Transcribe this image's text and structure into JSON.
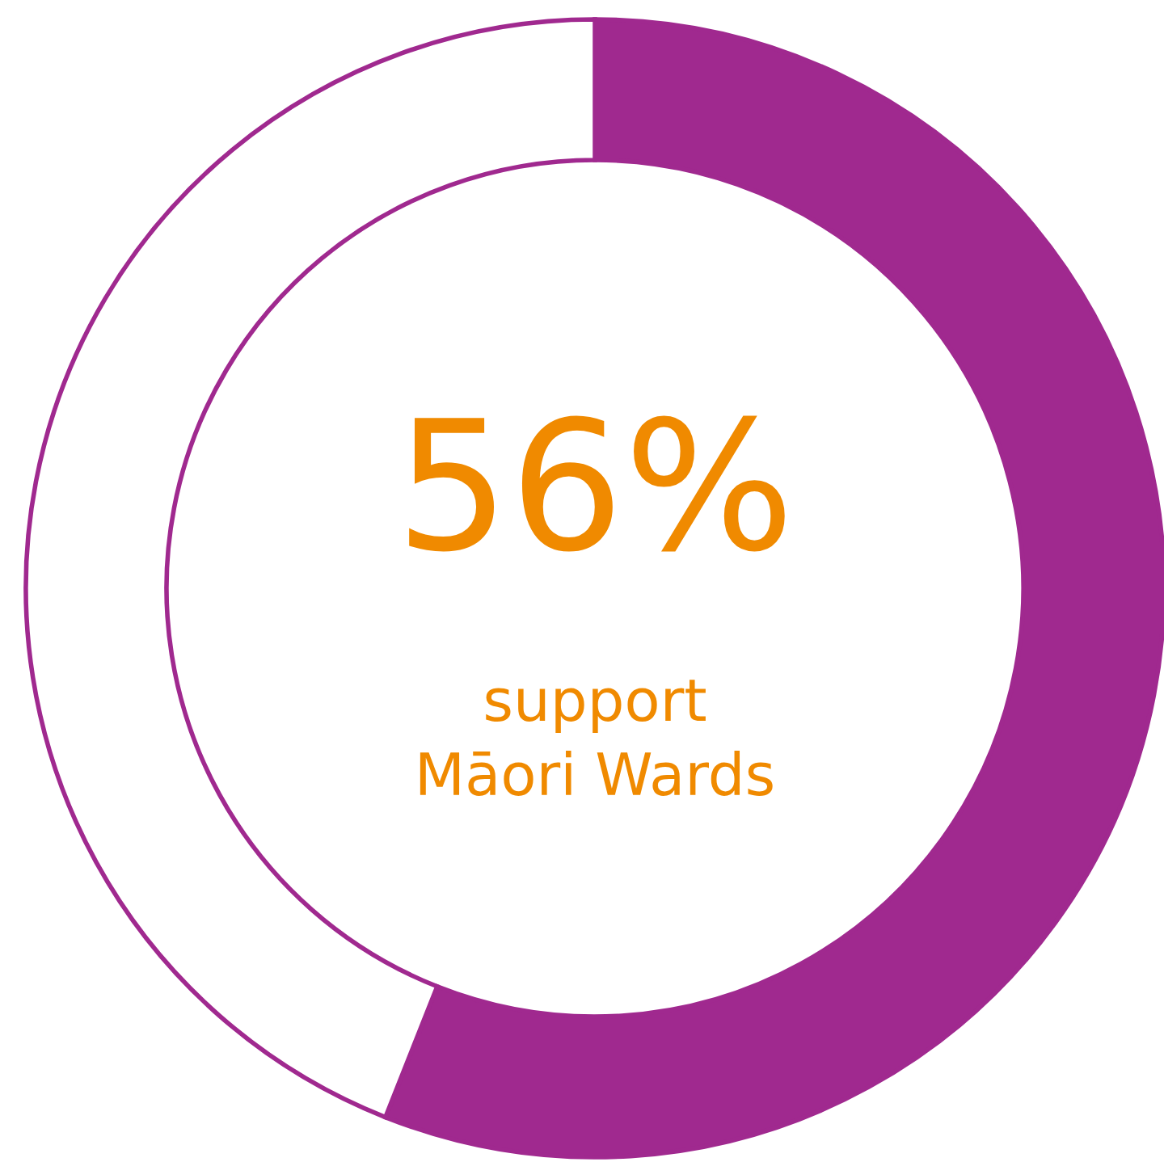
{
  "chart_data": {
    "type": "donut",
    "categories": [
      null,
      null
    ],
    "values": [
      56,
      44
    ],
    "colors": [
      "#a0298f",
      "#ffffff"
    ],
    "annotations": [
      "56%",
      "support\nMāori Wards"
    ]
  }
}
